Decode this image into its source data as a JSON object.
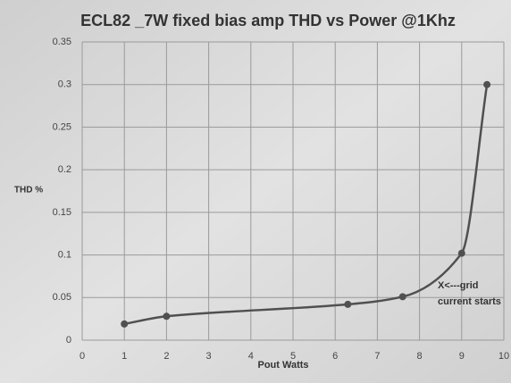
{
  "chart_data": {
    "type": "line",
    "title": "ECL82 _7W fixed bias amp THD vs Power @1Khz",
    "xlabel": "Pout Watts",
    "ylabel": "THD %",
    "x": [
      1,
      2,
      6.3,
      7.6,
      9,
      9.6
    ],
    "series": [
      {
        "name": "THD",
        "color": "#505050",
        "values": [
          0.019,
          0.028,
          0.042,
          0.051,
          0.102,
          0.3
        ]
      }
    ],
    "xlim": [
      0,
      10
    ],
    "xticks": [
      0,
      1,
      2,
      3,
      4,
      5,
      6,
      7,
      8,
      9,
      10
    ],
    "ylim": [
      0,
      0.35
    ],
    "yticks": [
      0,
      0.05,
      0.1,
      0.15,
      0.2,
      0.25,
      0.3,
      0.35
    ],
    "grid": true,
    "annotation": [
      "X<---grid",
      "current starts"
    ]
  }
}
